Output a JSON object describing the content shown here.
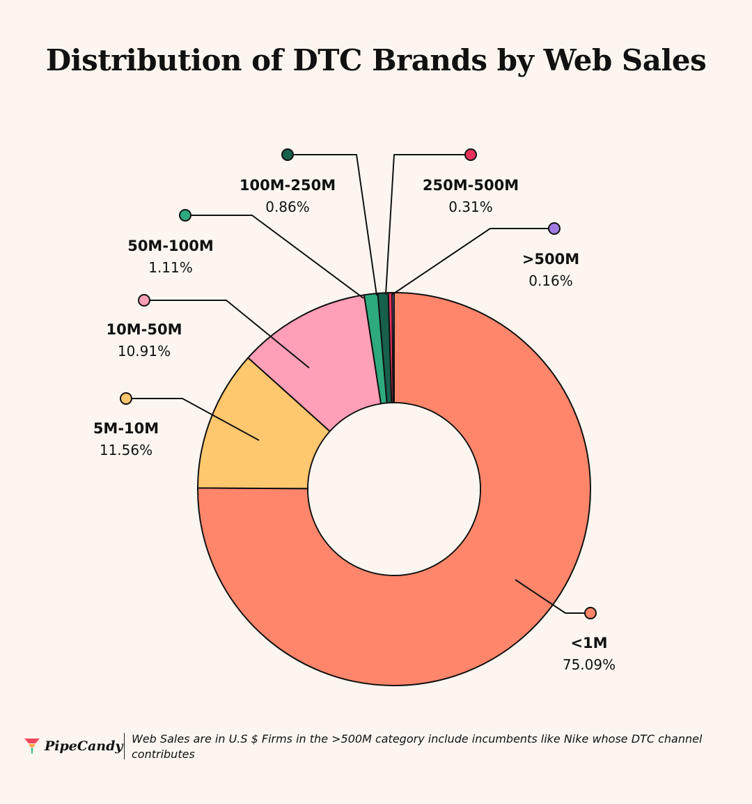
{
  "chart_data": {
    "type": "pie",
    "title": "Distribution of DTC Brands by Web Sales",
    "slices": [
      {
        "label": "<1M",
        "value": 75.09,
        "display": "75.09%",
        "color": "#ff866b"
      },
      {
        "label": "5M-10M",
        "value": 11.56,
        "display": "11.56%",
        "color": "#ffc76e"
      },
      {
        "label": "10M-50M",
        "value": 10.91,
        "display": "10.91%",
        "color": "#ff9fb8"
      },
      {
        "label": "50M-100M",
        "value": 1.11,
        "display": "1.11%",
        "color": "#2dab7f"
      },
      {
        "label": "100M-250M",
        "value": 0.86,
        "display": "0.86%",
        "color": "#17604c"
      },
      {
        "label": "250M-500M",
        "value": 0.31,
        "display": "0.31%",
        "color": "#e8325d"
      },
      {
        "label": ">500M",
        "value": 0.16,
        "display": "0.16%",
        "color": "#a07de3"
      }
    ]
  },
  "footer": {
    "brand": "PipeCandy",
    "note": "Web Sales are in U.S $ Firms in the >500M category include incumbents like Nike whose DTC channel contributes"
  },
  "colors": {
    "background": "#fdf6f0",
    "logo_red": "#f2475e",
    "logo_orange": "#ffa53f",
    "logo_green": "#3dbd8a"
  }
}
